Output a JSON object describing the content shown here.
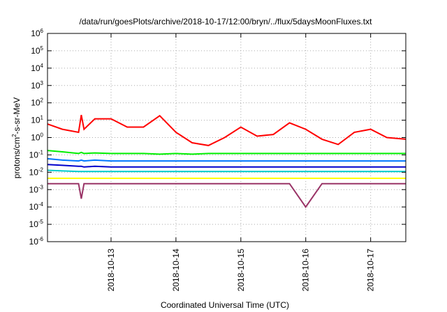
{
  "chart_data": {
    "type": "line",
    "title": "/data/run/goesPlots/archive/2018-10-17/12:00/bryn/../flux/5daysMoonFluxes.txt",
    "xlabel": "Coordinated Universal Time (UTC)",
    "ylabel": "protons/cm²-s-sr-MeV",
    "yscale": "log",
    "ylim": [
      1e-06,
      1000000.0
    ],
    "xlim": [
      "2018-10-12 00:30",
      "2018-10-17 13:00"
    ],
    "grid": true,
    "legend": "none",
    "x_tick_labels": [
      "2018-10-13",
      "2018-10-14",
      "2018-10-15",
      "2018-10-16",
      "2018-10-17"
    ],
    "y_tick_labels": [
      {
        "base": "10",
        "exp": "6"
      },
      {
        "base": "10",
        "exp": "5"
      },
      {
        "base": "10",
        "exp": "4"
      },
      {
        "base": "10",
        "exp": "3"
      },
      {
        "base": "10",
        "exp": "2"
      },
      {
        "base": "10",
        "exp": "1"
      },
      {
        "base": "10",
        "exp": "0"
      },
      {
        "base": "10",
        "exp": "-1"
      },
      {
        "base": "10",
        "exp": "-2"
      },
      {
        "base": "10",
        "exp": "-3"
      },
      {
        "base": "10",
        "exp": "-4"
      },
      {
        "base": "10",
        "exp": "-5"
      },
      {
        "base": "10",
        "exp": "-6"
      }
    ],
    "x": [
      "2018-10-12 00:30",
      "2018-10-12 06:00",
      "2018-10-12 12:00",
      "2018-10-12 13:00",
      "2018-10-12 14:00",
      "2018-10-12 18:00",
      "2018-10-13 00:00",
      "2018-10-13 06:00",
      "2018-10-13 12:00",
      "2018-10-13 18:00",
      "2018-10-14 00:00",
      "2018-10-14 06:00",
      "2018-10-14 12:00",
      "2018-10-14 18:00",
      "2018-10-15 00:00",
      "2018-10-15 06:00",
      "2018-10-15 12:00",
      "2018-10-15 18:00",
      "2018-10-16 00:00",
      "2018-10-16 06:00",
      "2018-10-16 12:00",
      "2018-10-16 18:00",
      "2018-10-17 00:00",
      "2018-10-17 06:00",
      "2018-10-17 13:00"
    ],
    "series": [
      {
        "color": "#ff0000",
        "values": [
          6,
          3,
          2,
          20,
          3,
          12,
          12,
          4,
          4,
          18,
          2,
          0.5,
          0.35,
          1,
          4,
          1.2,
          1.5,
          7,
          3,
          0.8,
          0.4,
          2,
          3,
          1,
          0.8
        ]
      },
      {
        "color": "#00ee00",
        "values": [
          0.18,
          0.15,
          0.12,
          0.14,
          0.12,
          0.13,
          0.12,
          0.12,
          0.12,
          0.11,
          0.12,
          0.11,
          0.12,
          0.12,
          0.12,
          0.12,
          0.12,
          0.12,
          0.12,
          0.12,
          0.12,
          0.12,
          0.12,
          0.12,
          0.12
        ]
      },
      {
        "color": "#0077ff",
        "values": [
          0.06,
          0.05,
          0.045,
          0.05,
          0.045,
          0.05,
          0.045,
          0.045,
          0.045,
          0.045,
          0.045,
          0.045,
          0.045,
          0.045,
          0.045,
          0.045,
          0.045,
          0.045,
          0.045,
          0.045,
          0.045,
          0.045,
          0.045,
          0.045,
          0.045
        ]
      },
      {
        "color": "#0000cc",
        "values": [
          0.028,
          0.025,
          0.022,
          0.022,
          0.02,
          0.022,
          0.02,
          0.02,
          0.02,
          0.02,
          0.02,
          0.02,
          0.02,
          0.02,
          0.02,
          0.02,
          0.02,
          0.02,
          0.02,
          0.02,
          0.02,
          0.02,
          0.02,
          0.02,
          0.02
        ]
      },
      {
        "color": "#00cccc",
        "values": [
          0.013,
          0.012,
          0.011,
          0.011,
          0.011,
          0.011,
          0.011,
          0.011,
          0.011,
          0.011,
          0.011,
          0.011,
          0.011,
          0.011,
          0.011,
          0.011,
          0.011,
          0.011,
          0.011,
          0.011,
          0.011,
          0.011,
          0.011,
          0.011,
          0.011
        ]
      },
      {
        "color": "#ffff00",
        "values": [
          0.0045,
          0.0045,
          0.0045,
          0.0045,
          0.0045,
          0.0045,
          0.0045,
          0.0045,
          0.0045,
          0.0045,
          0.0045,
          0.0045,
          0.0045,
          0.0045,
          0.0045,
          0.0045,
          0.0045,
          0.0045,
          0.0045,
          0.0045,
          0.0045,
          0.0045,
          0.0045,
          0.0045,
          0.0045
        ]
      },
      {
        "color": "#993366",
        "values": [
          0.0022,
          0.0022,
          0.0022,
          0.0003,
          0.0022,
          0.0022,
          0.0022,
          0.0022,
          0.0022,
          0.0022,
          0.0022,
          0.0022,
          0.0022,
          0.0022,
          0.0022,
          0.0022,
          0.0022,
          0.0022,
          0.0001,
          0.0022,
          0.0022,
          0.0022,
          0.0022,
          0.0022,
          0.0022
        ]
      }
    ]
  }
}
